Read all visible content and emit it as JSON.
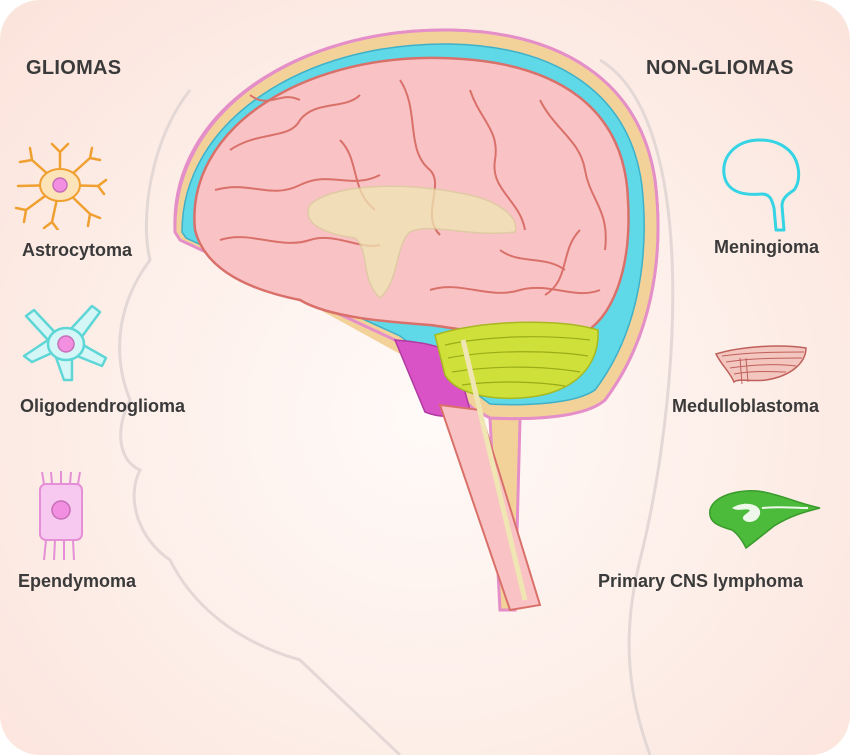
{
  "headings": {
    "left": "GLIOMAS",
    "right": "NON-GLIOMAS"
  },
  "gliomas": [
    {
      "label": "Astrocytoma",
      "icon": "astrocyte-icon",
      "color": "#f0a030"
    },
    {
      "label": "Oligodendroglioma",
      "icon": "oligodendrocyte-icon",
      "color": "#5fd6d6"
    },
    {
      "label": "Ependymoma",
      "icon": "ependymal-cell-icon",
      "color": "#e58fd6"
    }
  ],
  "non_gliomas": [
    {
      "label": "Meningioma",
      "icon": "meninges-outline-icon",
      "color": "#34d4e4"
    },
    {
      "label": "Medulloblastoma",
      "icon": "cerebellum-icon",
      "color": "#c0605a"
    },
    {
      "label": "Primary CNS lymphoma",
      "icon": "brain-silhouette-icon",
      "color": "#4cba3a"
    }
  ],
  "colors": {
    "brain": "#f9c3c5",
    "brain_outline": "#d9706a",
    "csf": "#5fd8e8",
    "skull": "#f3d29a",
    "cerebellum": "#cfe03a",
    "brainstem": "#d953c7",
    "ventricles": "#efe6b4"
  }
}
